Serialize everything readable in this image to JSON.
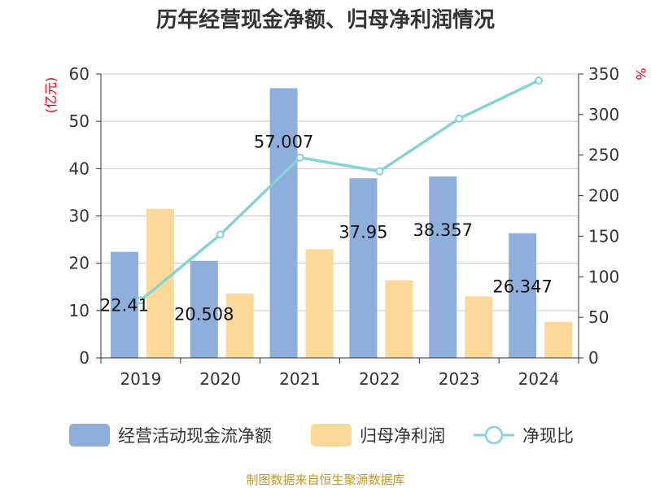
{
  "chart_data": {
    "type": "bar",
    "title": "历年经营现金净额、归母净利润情况",
    "categories": [
      "2019",
      "2020",
      "2021",
      "2022",
      "2023",
      "2024"
    ],
    "left_axis": {
      "unit": "(亿元)",
      "ylim": [
        0,
        60
      ],
      "ticks": [
        "0",
        "10",
        "20",
        "30",
        "40",
        "50",
        "60"
      ]
    },
    "right_axis": {
      "unit": "%",
      "ylim": [
        0,
        350
      ],
      "ticks": [
        "0",
        "50",
        "100",
        "150",
        "200",
        "250",
        "300",
        "350"
      ]
    },
    "series": [
      {
        "name": "经营活动现金流净额",
        "type": "bar",
        "axis": "left",
        "color": "#8eaedb",
        "values": [
          22.41,
          20.508,
          57.007,
          37.95,
          38.357,
          26.347
        ],
        "labels": [
          "22.41",
          "20.508",
          "57.007",
          "37.95",
          "38.357",
          "26.347"
        ]
      },
      {
        "name": "归母净利润",
        "type": "bar",
        "axis": "left",
        "color": "#fdd999",
        "values": [
          31.5,
          13.6,
          23.0,
          16.4,
          13.0,
          7.6
        ]
      },
      {
        "name": "净现比",
        "type": "line",
        "axis": "right",
        "color": "#86d3d6",
        "values": [
          71,
          152,
          247,
          230,
          295,
          342
        ]
      }
    ],
    "grid": true,
    "legend": "bottom"
  },
  "source": "制图数据来自恒生聚源数据库"
}
